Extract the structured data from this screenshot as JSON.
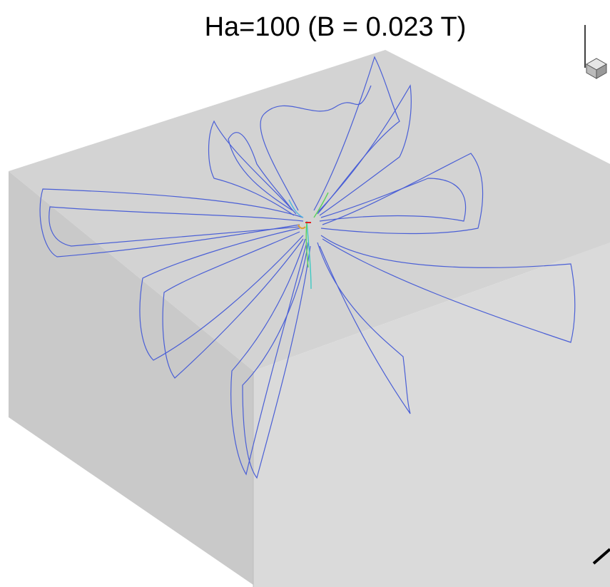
{
  "title": "Ha=100 (B = 0.023 T)"
}
